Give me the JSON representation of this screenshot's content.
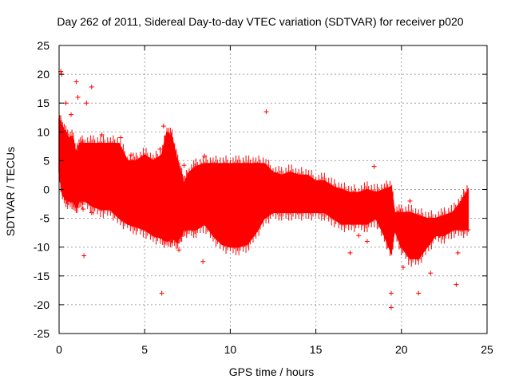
{
  "chart_data": {
    "type": "scatter",
    "title": "Day 262 of 2011, Sidereal Day-to-day VTEC variation (SDTVAR) for receiver p020",
    "xlabel": "GPS time / hours",
    "ylabel": "SDTVAR / TECUs",
    "xlim": [
      0,
      25
    ],
    "ylim": [
      -25,
      25
    ],
    "xticks": [
      0,
      5,
      10,
      15,
      20,
      25
    ],
    "yticks": [
      -25,
      -20,
      -15,
      -10,
      -5,
      0,
      5,
      10,
      15,
      20,
      25
    ],
    "grid": true,
    "marker": "+",
    "color": "#ff0000",
    "series": [
      {
        "name": "SDTVAR p020",
        "band": {
          "x": [
            0.0,
            0.2,
            0.5,
            0.8,
            1.0,
            1.2,
            1.5,
            2.0,
            2.5,
            3.0,
            3.5,
            4.0,
            4.5,
            5.0,
            5.5,
            6.0,
            6.3,
            6.6,
            6.9,
            7.1,
            7.3,
            7.6,
            8.0,
            8.5,
            9.0,
            9.5,
            10.0,
            10.5,
            11.0,
            11.5,
            12.0,
            12.5,
            13.0,
            13.5,
            14.0,
            14.5,
            15.0,
            15.5,
            16.0,
            16.5,
            17.0,
            17.5,
            18.0,
            18.5,
            19.0,
            19.4,
            19.6,
            20.0,
            20.5,
            21.0,
            21.5,
            22.0,
            22.5,
            23.0,
            23.5,
            23.9
          ],
          "upper": [
            12,
            11,
            9,
            9,
            6,
            8,
            8,
            8,
            8,
            8,
            8,
            5,
            5,
            6,
            5,
            6,
            10,
            9,
            5,
            3,
            1,
            3,
            4,
            4.5,
            4.5,
            4.5,
            4.5,
            4.5,
            4.5,
            4.5,
            4.5,
            3,
            2.5,
            3,
            2.5,
            2.5,
            1.5,
            1.5,
            0.5,
            0,
            -0.5,
            -0.5,
            0,
            -0.5,
            0,
            0.5,
            -4,
            -4,
            -4,
            -4.5,
            -5,
            -5,
            -4.5,
            -4,
            -2,
            0
          ],
          "lower": [
            3,
            -1,
            -2,
            -2,
            -3,
            -2,
            -2,
            -3,
            -3.5,
            -3.5,
            -5,
            -6,
            -6.5,
            -7,
            -8,
            -8.5,
            -9,
            -8.5,
            -9,
            -8,
            -7,
            -7,
            -7,
            -6,
            -8,
            -9.5,
            -10,
            -10,
            -9.5,
            -7.5,
            -5,
            -4,
            -4,
            -4,
            -4,
            -4,
            -4,
            -4,
            -5,
            -6,
            -6,
            -6,
            -6,
            -5,
            -8,
            -11,
            -7,
            -10,
            -12,
            -12,
            -10,
            -8,
            -8,
            -7,
            -7,
            -7
          ]
        },
        "outliers": [
          {
            "x": 0.1,
            "y": 20.5
          },
          {
            "x": 0.15,
            "y": 20
          },
          {
            "x": 0.4,
            "y": 15
          },
          {
            "x": 0.7,
            "y": 13
          },
          {
            "x": 1.0,
            "y": 18.7
          },
          {
            "x": 1.1,
            "y": 16
          },
          {
            "x": 1.6,
            "y": 15
          },
          {
            "x": 1.9,
            "y": 17.8
          },
          {
            "x": 1.4,
            "y": -3.4
          },
          {
            "x": 1.45,
            "y": -11.5
          },
          {
            "x": 1.9,
            "y": -4
          },
          {
            "x": 2.5,
            "y": 9.5
          },
          {
            "x": 3.6,
            "y": 9
          },
          {
            "x": 4.2,
            "y": 6
          },
          {
            "x": 5.9,
            "y": 7
          },
          {
            "x": 6.0,
            "y": -18
          },
          {
            "x": 6.1,
            "y": 11
          },
          {
            "x": 7.0,
            "y": -10.5
          },
          {
            "x": 7.3,
            "y": 4.2
          },
          {
            "x": 8.5,
            "y": 5.8
          },
          {
            "x": 8.4,
            "y": -12.5
          },
          {
            "x": 12.1,
            "y": 13.5
          },
          {
            "x": 17.0,
            "y": -11
          },
          {
            "x": 17.5,
            "y": -8
          },
          {
            "x": 18.0,
            "y": -9
          },
          {
            "x": 18.4,
            "y": 4
          },
          {
            "x": 19.4,
            "y": -18
          },
          {
            "x": 19.4,
            "y": -20.5
          },
          {
            "x": 20.1,
            "y": -13.5
          },
          {
            "x": 20.5,
            "y": -2
          },
          {
            "x": 21.0,
            "y": -18
          },
          {
            "x": 21.0,
            "y": -12
          },
          {
            "x": 21.7,
            "y": -14.5
          },
          {
            "x": 22.2,
            "y": -8
          },
          {
            "x": 23.2,
            "y": -16.5
          },
          {
            "x": 23.3,
            "y": -11
          },
          {
            "x": 23.2,
            "y": -5
          },
          {
            "x": 23.5,
            "y": -4.5
          },
          {
            "x": 23.9,
            "y": -7
          }
        ]
      }
    ]
  }
}
